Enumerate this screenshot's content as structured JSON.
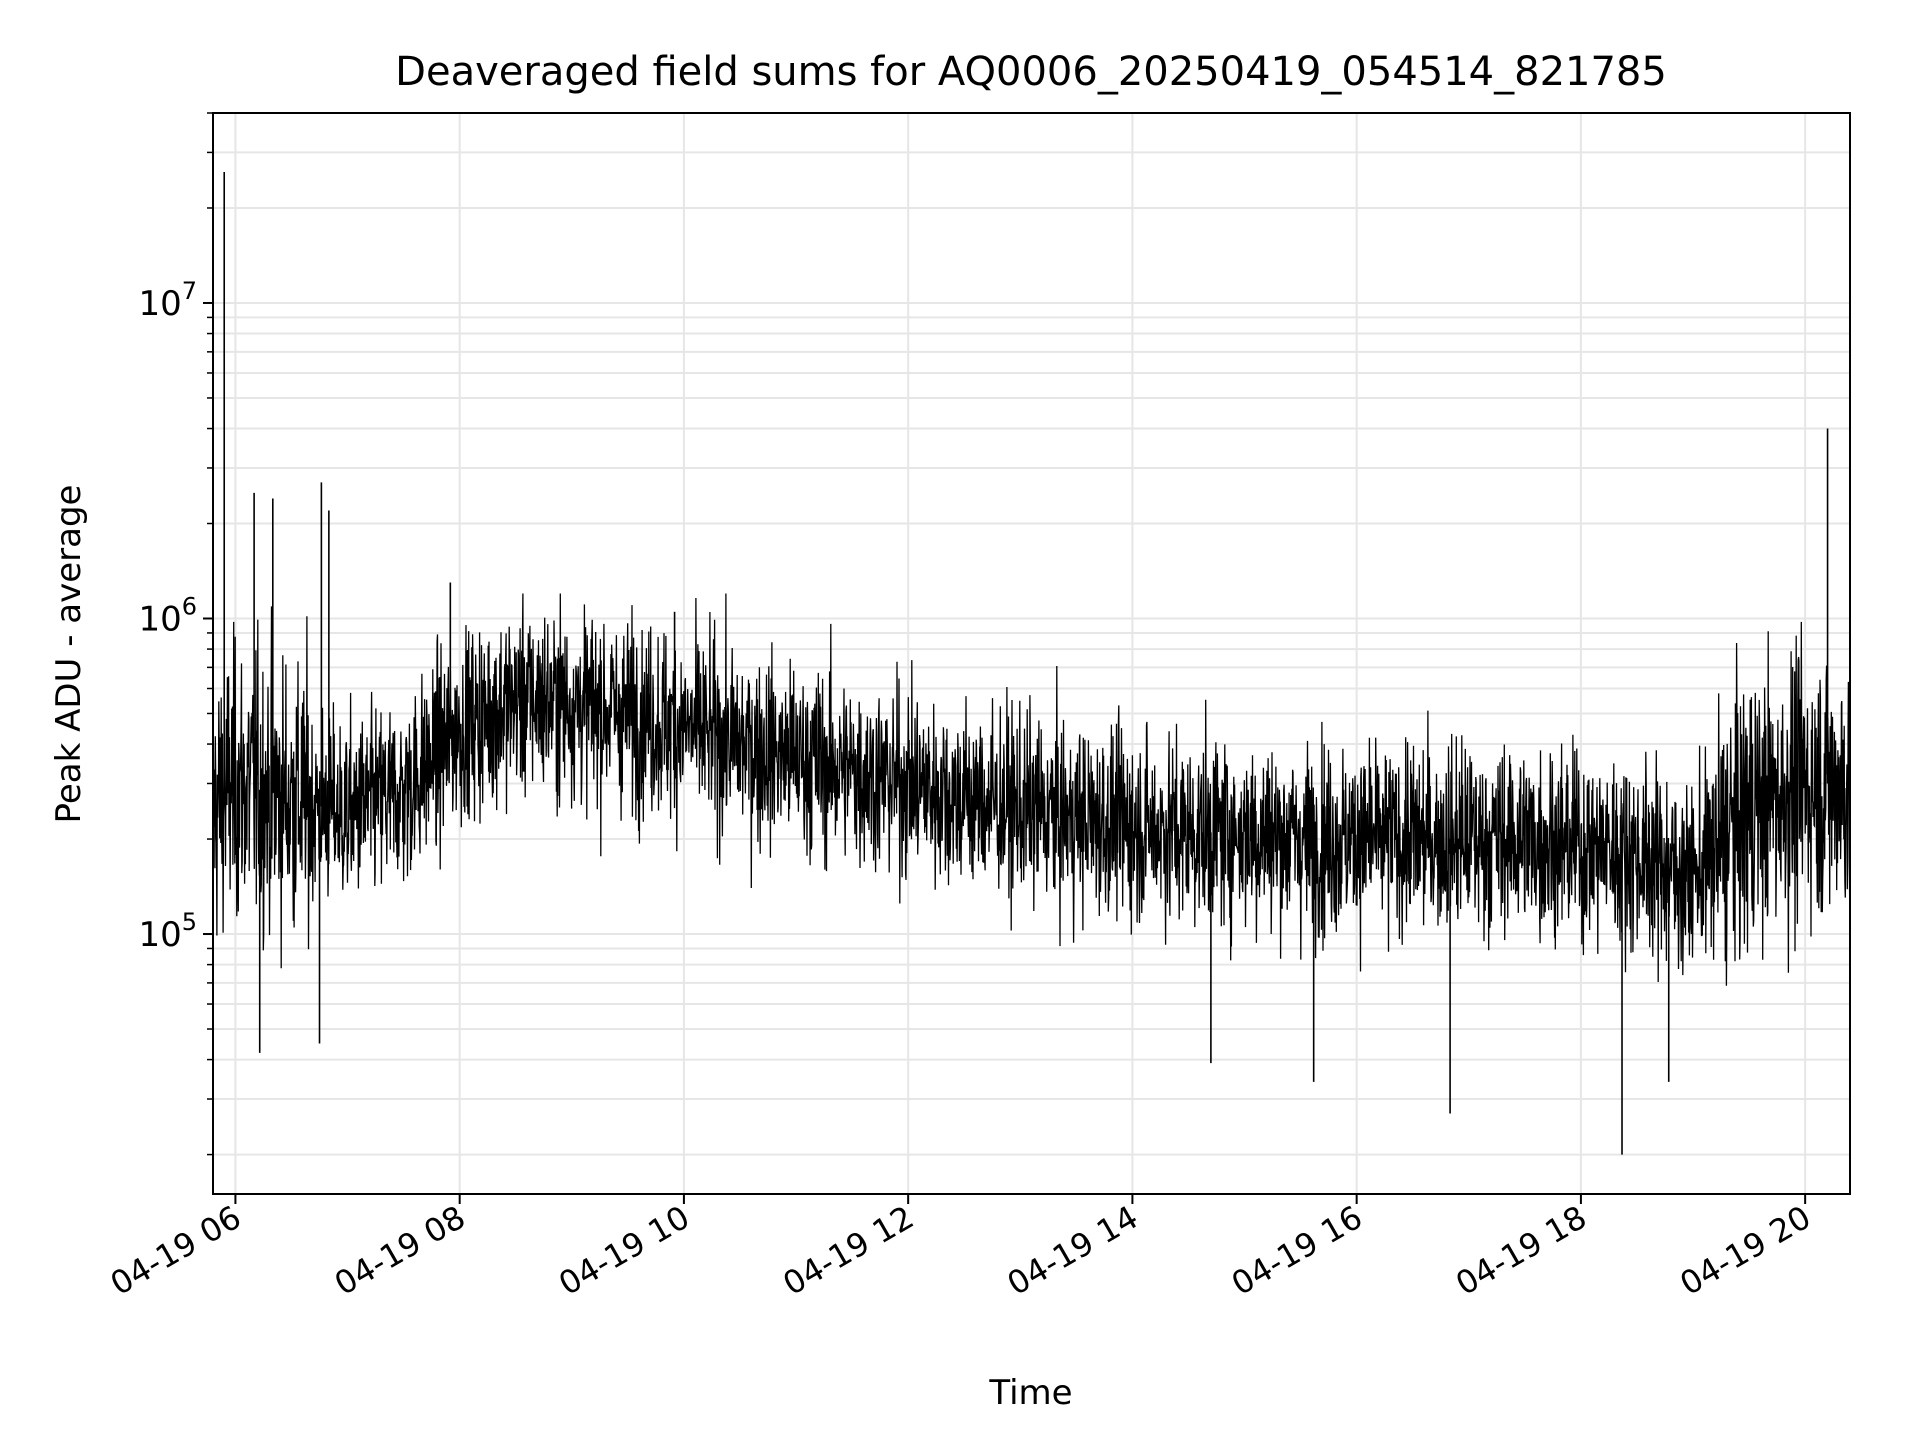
{
  "chart_data": {
    "type": "line",
    "title": "Deaveraged field sums for AQ0006_20250419_054514_821785",
    "xlabel": "Time",
    "ylabel": "Peak ADU - average",
    "yscale": "log",
    "ylim": [
      15000,
      40000000
    ],
    "xlim": [
      "2025-04-19 05:48",
      "2025-04-19 20:24"
    ],
    "x_ticks": [
      {
        "t": "2025-04-19 06:00",
        "label": "04-19 06"
      },
      {
        "t": "2025-04-19 08:00",
        "label": "04-19 08"
      },
      {
        "t": "2025-04-19 10:00",
        "label": "04-19 10"
      },
      {
        "t": "2025-04-19 12:00",
        "label": "04-19 12"
      },
      {
        "t": "2025-04-19 14:00",
        "label": "04-19 14"
      },
      {
        "t": "2025-04-19 16:00",
        "label": "04-19 16"
      },
      {
        "t": "2025-04-19 18:00",
        "label": "04-19 18"
      },
      {
        "t": "2025-04-19 20:00",
        "label": "04-19 20"
      }
    ],
    "y_ticks": [
      {
        "value": 100000,
        "base": "10",
        "exp": "5"
      },
      {
        "value": 1000000,
        "base": "10",
        "exp": "6"
      },
      {
        "value": 10000000,
        "base": "10",
        "exp": "7"
      }
    ],
    "grid": true,
    "line_color": "#000000",
    "series": [
      {
        "x": [
          "2025-04-19 05:48",
          "2025-04-19 06:00",
          "2025-04-19 06:30",
          "2025-04-19 07:00",
          "2025-04-19 07:30",
          "2025-04-19 08:00",
          "2025-04-19 08:30",
          "2025-04-19 09:00",
          "2025-04-19 09:30",
          "2025-04-19 10:00",
          "2025-04-19 10:30",
          "2025-04-19 11:00",
          "2025-04-19 11:30",
          "2025-04-19 12:00",
          "2025-04-19 12:30",
          "2025-04-19 13:00",
          "2025-04-19 13:30",
          "2025-04-19 14:00",
          "2025-04-19 14:30",
          "2025-04-19 15:00",
          "2025-04-19 15:30",
          "2025-04-19 16:00",
          "2025-04-19 16:30",
          "2025-04-19 17:00",
          "2025-04-19 17:30",
          "2025-04-19 18:00",
          "2025-04-19 18:30",
          "2025-04-19 19:00",
          "2025-04-19 19:30",
          "2025-04-19 20:00",
          "2025-04-19 20:24"
        ],
        "y": [
          250000,
          300000,
          270000,
          240000,
          280000,
          450000,
          550000,
          540000,
          500000,
          450000,
          400000,
          360000,
          330000,
          300000,
          270000,
          250000,
          230000,
          220000,
          210000,
          210000,
          200000,
          200000,
          200000,
          200000,
          200000,
          190000,
          180000,
          150000,
          250000,
          300000,
          300000
        ]
      }
    ],
    "spikes": [
      {
        "t": "2025-04-19 05:54",
        "y": 26000000
      },
      {
        "t": "2025-04-19 06:10",
        "y": 2500000
      },
      {
        "t": "2025-04-19 06:20",
        "y": 2400000
      },
      {
        "t": "2025-04-19 06:46",
        "y": 2700000
      },
      {
        "t": "2025-04-19 06:50",
        "y": 2200000
      },
      {
        "t": "2025-04-19 07:55",
        "y": 1300000
      },
      {
        "t": "2025-04-19 09:55",
        "y": 1050000
      },
      {
        "t": "2025-04-19 20:12",
        "y": 4000000
      },
      {
        "t": "2025-04-19 06:13",
        "y": 42000
      },
      {
        "t": "2025-04-19 06:45",
        "y": 45000
      },
      {
        "t": "2025-04-19 15:37",
        "y": 34000
      },
      {
        "t": "2025-04-19 16:50",
        "y": 27000
      },
      {
        "t": "2025-04-19 18:22",
        "y": 20000
      },
      {
        "t": "2025-04-19 18:47",
        "y": 34000
      },
      {
        "t": "2025-04-19 14:42",
        "y": 39000
      }
    ]
  }
}
